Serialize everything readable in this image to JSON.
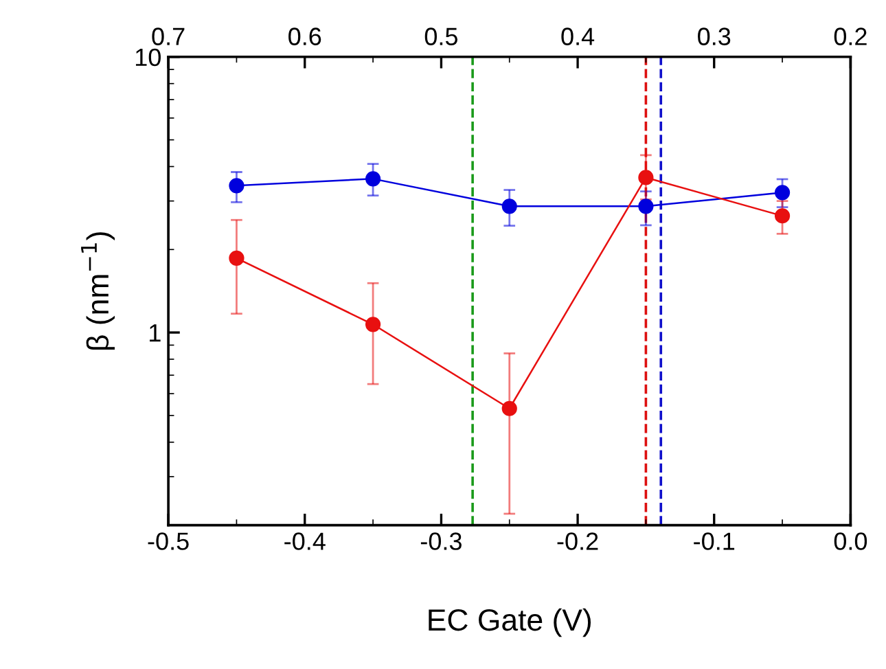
{
  "chart_data": {
    "type": "line",
    "xlabel": "EC Gate (V)",
    "ylabel": "β (nm$^{−1}$)",
    "x": [
      -0.45,
      -0.35,
      -0.25,
      -0.15,
      -0.05
    ],
    "series": [
      {
        "color": "#0000dd",
        "values": [
          3.41,
          3.61,
          2.87,
          2.87,
          3.22
        ],
        "errors": [
          [
            2.97,
            3.82
          ],
          [
            3.14,
            4.09
          ],
          [
            2.44,
            3.29
          ],
          [
            2.45,
            3.25
          ],
          [
            2.85,
            3.6
          ]
        ]
      },
      {
        "color": "#e81010",
        "values": [
          1.86,
          1.07,
          0.53,
          3.65,
          2.65
        ],
        "errors": [
          [
            1.17,
            2.56
          ],
          [
            0.65,
            1.51
          ],
          [
            0.22,
            0.84
          ],
          [
            3.04,
            4.4
          ],
          [
            2.28,
            3.0
          ]
        ]
      }
    ],
    "log": "y",
    "ylim": [
      0.2,
      10
    ],
    "yticks": [
      1,
      10
    ],
    "xlim": [
      -0.5,
      0.0
    ],
    "xticks": [
      -0.5,
      -0.4,
      -0.3,
      -0.2,
      -0.1,
      {
        "value": 0,
        "label": "0.0"
      }
    ],
    "x2lim": [
      0.7,
      0.2
    ],
    "x2ticks": [
      0.7,
      0.6,
      0.5,
      0.4,
      0.3,
      0.2
    ],
    "marker": "circle",
    "line_style": "solid",
    "grid": false,
    "legend": false,
    "ref_lines": [
      {
        "axis": "x",
        "value": -0.277,
        "color": "#1a9a1a",
        "line_style": "dashed"
      },
      {
        "axis": "x",
        "value": -0.15,
        "color": "#dd1010",
        "line_style": "dashed"
      },
      {
        "axis": "x",
        "value": -0.139,
        "color": "#1010cc",
        "line_style": "dashed"
      }
    ]
  }
}
